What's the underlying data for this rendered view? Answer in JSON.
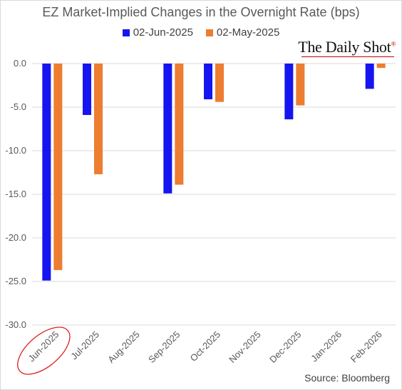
{
  "chart_data": {
    "type": "bar",
    "title": "EZ Market-Implied Changes in the Overnight Rate (bps)",
    "categories": [
      "Jun-2025",
      "Jul-2025",
      "Aug-2025",
      "Sep-2025",
      "Oct-2025",
      "Nov-2025",
      "Dec-2025",
      "Jan-2026",
      "Feb-2026"
    ],
    "series": [
      {
        "name": "02-Jun-2025",
        "color": "#1515f0",
        "values": [
          -24.9,
          -5.9,
          null,
          -14.9,
          -4.1,
          null,
          -6.4,
          null,
          -2.9
        ]
      },
      {
        "name": "02-May-2025",
        "color": "#ed7d31",
        "values": [
          -23.7,
          -12.7,
          null,
          -13.9,
          -4.4,
          null,
          -4.8,
          null,
          -0.5
        ]
      }
    ],
    "y_ticks": [
      "0.0",
      "-5.0",
      "-10.0",
      "-15.0",
      "-20.0",
      "-25.0",
      "-30.0"
    ],
    "ylim": [
      -30,
      0
    ],
    "grid": true,
    "legend_position": "top",
    "highlighted_category": "Jun-2025"
  },
  "branding": {
    "name": "The Daily Shot",
    "mark": "®"
  },
  "source": "Source: Bloomberg"
}
